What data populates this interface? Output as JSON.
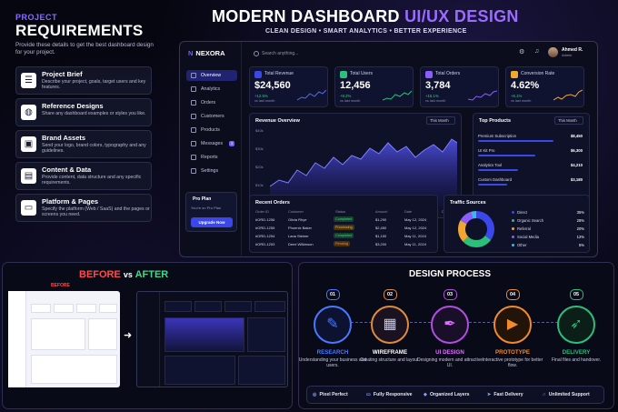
{
  "requirements": {
    "tag": "PROJECT",
    "title": "REQUIREMENTS",
    "subtitle": "Provide these details to get the best dashboard design for your project.",
    "items": [
      {
        "title": "Project Brief",
        "desc": "Describe your project, goals, target users and key features.",
        "icon": "clipboard-icon",
        "glyph": "☰"
      },
      {
        "title": "Reference Designs",
        "desc": "Share any dashboard examples or styles you like.",
        "icon": "palette-icon",
        "glyph": "◍"
      },
      {
        "title": "Brand Assets",
        "desc": "Send your logo, brand colors, typography and any guidelines.",
        "icon": "image-icon",
        "glyph": "▣"
      },
      {
        "title": "Content & Data",
        "desc": "Provide content, data structure and any specific requirements.",
        "icon": "document-icon",
        "glyph": "▤"
      },
      {
        "title": "Platform & Pages",
        "desc": "Specify the platform (Web / SaaS) and the pages or screens you need.",
        "icon": "window-icon",
        "glyph": "▭"
      }
    ]
  },
  "header": {
    "title_main": "MODERN DASHBOARD ",
    "title_accent": "UI/UX DESIGN",
    "subtitle": "CLEAN DESIGN  •  SMART ANALYTICS  •  BETTER EXPERIENCE"
  },
  "dashboard": {
    "brand": "NEXORA",
    "search_placeholder": "Search anything...",
    "user_name": "Ahmed R.",
    "user_role": "Admin",
    "nav": [
      "Overview",
      "Analytics",
      "Orders",
      "Customers",
      "Products",
      "Messages",
      "Reports",
      "Settings"
    ],
    "messages_badge": "3",
    "pro": {
      "title": "Pro Plan",
      "desc": "You're on Pro Plan",
      "button": "Upgrade Now"
    },
    "stats": [
      {
        "label": "Total Revenue",
        "value": "$24,560",
        "change": "+12.5%",
        "sub": "vs last month",
        "color": "#3b47e8"
      },
      {
        "label": "Total Users",
        "value": "12,456",
        "change": "+8.2%",
        "sub": "vs last month",
        "color": "#2bbf7a"
      },
      {
        "label": "Total Orders",
        "value": "3,784",
        "change": "+15.1%",
        "sub": "vs last month",
        "color": "#8c5cff"
      },
      {
        "label": "Conversion Rate",
        "value": "4.62%",
        "change": "+6.1%",
        "sub": "vs last month",
        "color": "#f0a630"
      }
    ],
    "revenue": {
      "title": "Revenue Overview",
      "period": "This Month",
      "yticks": [
        "$40k",
        "$30k",
        "$20k",
        "$10k",
        "$0"
      ],
      "xticks": [
        "Jan",
        "Feb",
        "Mar",
        "Apr",
        "May",
        "Jun",
        "Jul",
        "Aug",
        "Sep",
        "Oct",
        "Nov",
        "Dec"
      ]
    },
    "top_products": {
      "title": "Top Products",
      "period": "This Month",
      "items": [
        {
          "name": "Premium Subscription",
          "value": "$8,450",
          "share": 0.72
        },
        {
          "name": "UI Kit Pro",
          "value": "$6,300",
          "share": 0.55
        },
        {
          "name": "Analytics Tool",
          "value": "$4,210",
          "share": 0.38
        },
        {
          "name": "Custom Dashboard",
          "value": "$3,180",
          "share": 0.28
        }
      ]
    },
    "orders": {
      "title": "Recent Orders",
      "headers": [
        "Order ID",
        "Customer",
        "Status",
        "Amount",
        "Date"
      ],
      "rows": [
        [
          "#ORD-1256",
          "Olivia Rhye",
          "Completed",
          "$1,290",
          "May 12, 2024"
        ],
        [
          "#ORD-1255",
          "Phoenix Baker",
          "Processing",
          "$2,450",
          "May 12, 2024"
        ],
        [
          "#ORD-1254",
          "Lana Steiner",
          "Completed",
          "$1,150",
          "May 11, 2024"
        ],
        [
          "#ORD-1253",
          "Demi Wilkinson",
          "Pending",
          "$3,200",
          "May 11, 2024"
        ]
      ]
    },
    "traffic": {
      "title": "Traffic Sources",
      "items": [
        {
          "name": "Direct",
          "pct": "35%",
          "color": "#3b47e8"
        },
        {
          "name": "Organic Search",
          "pct": "28%",
          "color": "#2bbf7a"
        },
        {
          "name": "Referral",
          "pct": "20%",
          "color": "#f0a630"
        },
        {
          "name": "Social Media",
          "pct": "12%",
          "color": "#8c5cff"
        },
        {
          "name": "Other",
          "pct": "5%",
          "color": "#3fb6e8"
        }
      ]
    }
  },
  "before_after": {
    "before": "BEFORE",
    "vs": "vs",
    "after": "AFTER",
    "before_label": "BEFORE"
  },
  "process": {
    "title": "DESIGN PROCESS",
    "steps": [
      {
        "num": "01",
        "title": "RESEARCH",
        "desc": "Understanding your business and users.",
        "icon": "research-icon",
        "glyph": "✎",
        "color": "#4a78ff"
      },
      {
        "num": "02",
        "title": "WIREFRAME",
        "desc": "Creating structure and layout.",
        "icon": "wireframe-icon",
        "glyph": "▦",
        "color": "#e08a3c"
      },
      {
        "num": "03",
        "title": "UI DESIGN",
        "desc": "Designing modern and attractive UI.",
        "icon": "pen-tool-icon",
        "glyph": "✒",
        "color": "#b04ee0"
      },
      {
        "num": "04",
        "title": "PROTOTYPE",
        "desc": "Interactive prototype for better flow.",
        "icon": "play-icon",
        "glyph": "▶",
        "color": "#f08a2c"
      },
      {
        "num": "05",
        "title": "DELIVERY",
        "desc": "Final files and handover.",
        "icon": "rocket-icon",
        "glyph": "➶",
        "color": "#2bbf7a"
      }
    ],
    "features": [
      {
        "label": "Pixel Perfect",
        "icon": "target-icon",
        "glyph": "◎"
      },
      {
        "label": "Fully Responsive",
        "icon": "devices-icon",
        "glyph": "▭"
      },
      {
        "label": "Organized Layers",
        "icon": "layers-icon",
        "glyph": "◈"
      },
      {
        "label": "Fast Delivery",
        "icon": "speed-icon",
        "glyph": "➤"
      },
      {
        "label": "Unlimited Support",
        "icon": "headset-icon",
        "glyph": "∩"
      }
    ]
  }
}
